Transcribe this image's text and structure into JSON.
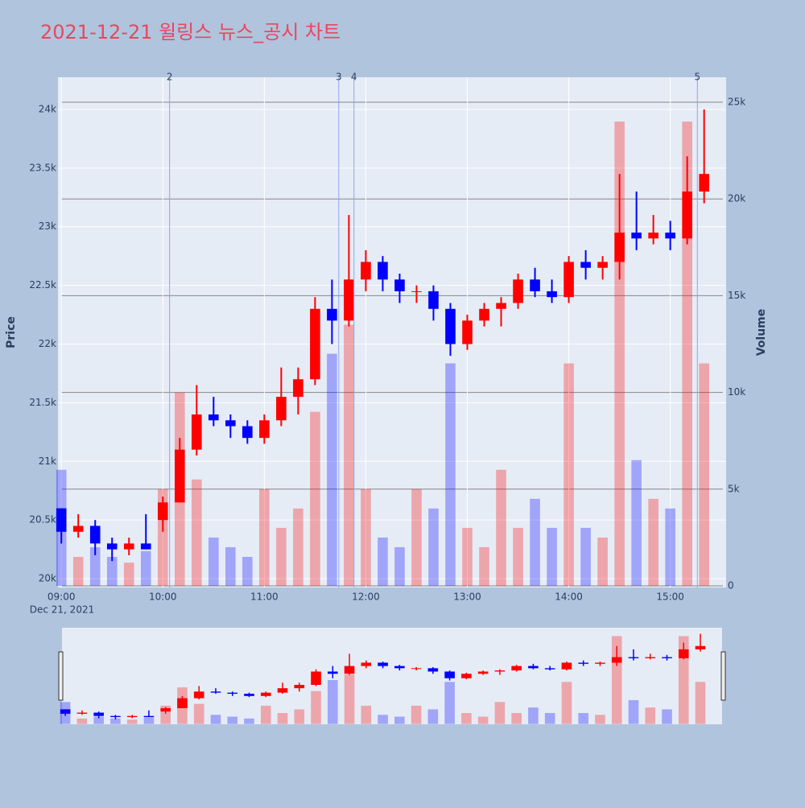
{
  "chart_data": {
    "type": "candlestick",
    "title": "2021-12-21 윌링스 뉴스_공시 차트",
    "x_date_label": "Dec 21, 2021",
    "y_title": "Price",
    "y2_title": "Volume",
    "increasing_color": "#ff0000",
    "decreasing_color": "#0000ff",
    "x": [
      "2021-12-21 09:00",
      "2021-12-21 09:10",
      "2021-12-21 09:20",
      "2021-12-21 09:30",
      "2021-12-21 09:40",
      "2021-12-21 09:50",
      "2021-12-21 10:00",
      "2021-12-21 10:10",
      "2021-12-21 10:20",
      "2021-12-21 10:30",
      "2021-12-21 10:40",
      "2021-12-21 10:50",
      "2021-12-21 11:00",
      "2021-12-21 11:10",
      "2021-12-21 11:20",
      "2021-12-21 11:30",
      "2021-12-21 11:40",
      "2021-12-21 11:50",
      "2021-12-21 12:00",
      "2021-12-21 12:10",
      "2021-12-21 12:20",
      "2021-12-21 12:30",
      "2021-12-21 12:40",
      "2021-12-21 12:50",
      "2021-12-21 13:00",
      "2021-12-21 13:10",
      "2021-12-21 13:20",
      "2021-12-21 13:30",
      "2021-12-21 13:40",
      "2021-12-21 13:50",
      "2021-12-21 14:00",
      "2021-12-21 14:10",
      "2021-12-21 14:20",
      "2021-12-21 14:30",
      "2021-12-21 14:40",
      "2021-12-21 14:50",
      "2021-12-21 15:00",
      "2021-12-21 15:10",
      "2021-12-21 15:20"
    ],
    "open": [
      20600,
      20400,
      20450,
      20300,
      20250,
      20300,
      20500,
      20650,
      21100,
      21400,
      21350,
      21300,
      21200,
      21350,
      21550,
      21700,
      22300,
      22200,
      22550,
      22700,
      22550,
      22450,
      22450,
      22300,
      22000,
      22200,
      22300,
      22350,
      22550,
      22450,
      22400,
      22700,
      22650,
      22700,
      22950,
      22900,
      22950,
      22900,
      23300
    ],
    "high": [
      20600,
      20550,
      20500,
      20350,
      20350,
      20550,
      20700,
      21200,
      21650,
      21550,
      21400,
      21350,
      21400,
      21800,
      21800,
      22400,
      22550,
      23100,
      22800,
      22750,
      22600,
      22500,
      22500,
      22350,
      22250,
      22350,
      22400,
      22600,
      22650,
      22550,
      22750,
      22800,
      22750,
      23450,
      23300,
      23100,
      23050,
      23600,
      24000
    ],
    "low": [
      20300,
      20350,
      20200,
      20150,
      20200,
      20250,
      20400,
      20650,
      21050,
      21300,
      21200,
      21150,
      21150,
      21300,
      21400,
      21650,
      22000,
      22150,
      22450,
      22450,
      22350,
      22350,
      22200,
      21900,
      21950,
      22150,
      22150,
      22300,
      22400,
      22350,
      22350,
      22550,
      22550,
      22550,
      22800,
      22850,
      22800,
      22850,
      23200
    ],
    "close": [
      20400,
      20450,
      20300,
      20250,
      20300,
      20250,
      20650,
      21100,
      21400,
      21350,
      21300,
      21200,
      21350,
      21550,
      21700,
      22300,
      22200,
      22550,
      22700,
      22550,
      22450,
      22450,
      22300,
      22000,
      22200,
      22300,
      22350,
      22550,
      22450,
      22400,
      22700,
      22650,
      22700,
      22950,
      22900,
      22950,
      22900,
      23300,
      23450
    ],
    "volume": [
      6000,
      1500,
      2000,
      1500,
      1200,
      1800,
      5000,
      10000,
      5500,
      2500,
      2000,
      1500,
      5000,
      3000,
      4000,
      9000,
      12000,
      13500,
      5000,
      2500,
      2000,
      5000,
      4000,
      11500,
      3000,
      2000,
      6000,
      3000,
      4500,
      3000,
      11500,
      3000,
      2500,
      24000,
      6500,
      4500,
      4000,
      24000,
      11500
    ],
    "news": [
      {
        "x": "2021-12-21 10:04",
        "label": "2"
      },
      {
        "x": "2021-12-21 11:44",
        "label": "3"
      },
      {
        "x": "2021-12-21 11:53",
        "label": "4"
      },
      {
        "x": "2021-12-21 15:16",
        "label": "5"
      }
    ],
    "xlim": [
      "2021-12-21 08:58",
      "2021-12-21 15:33"
    ],
    "xticks": [
      {
        "value": "2021-12-21 09:00",
        "label": "09:00"
      },
      {
        "value": "2021-12-21 10:00",
        "label": "10:00"
      },
      {
        "value": "2021-12-21 11:00",
        "label": "11:00"
      },
      {
        "value": "2021-12-21 12:00",
        "label": "12:00"
      },
      {
        "value": "2021-12-21 13:00",
        "label": "13:00"
      },
      {
        "value": "2021-12-21 14:00",
        "label": "14:00"
      },
      {
        "value": "2021-12-21 15:00",
        "label": "15:00"
      }
    ],
    "ylim": [
      19925,
      24274
    ],
    "yticks": [
      {
        "value": 20000,
        "label": "20k"
      },
      {
        "value": 20500,
        "label": "20.5k"
      },
      {
        "value": 21000,
        "label": "21k"
      },
      {
        "value": 21500,
        "label": "21.5k"
      },
      {
        "value": 22000,
        "label": "22k"
      },
      {
        "value": 22500,
        "label": "22.5k"
      },
      {
        "value": 23000,
        "label": "23k"
      },
      {
        "value": 23500,
        "label": "23.5k"
      },
      {
        "value": 24000,
        "label": "24k"
      }
    ],
    "y2lim": [
      -83,
      26290
    ],
    "y2ticks": [
      0,
      {
        "value": 5000,
        "label": "5k"
      },
      {
        "value": 10000,
        "label": "10k"
      },
      {
        "value": 15000,
        "label": "15k"
      },
      {
        "value": 20000,
        "label": "20k"
      },
      {
        "value": 25000,
        "label": "25k"
      }
    ],
    "grid": true
  }
}
